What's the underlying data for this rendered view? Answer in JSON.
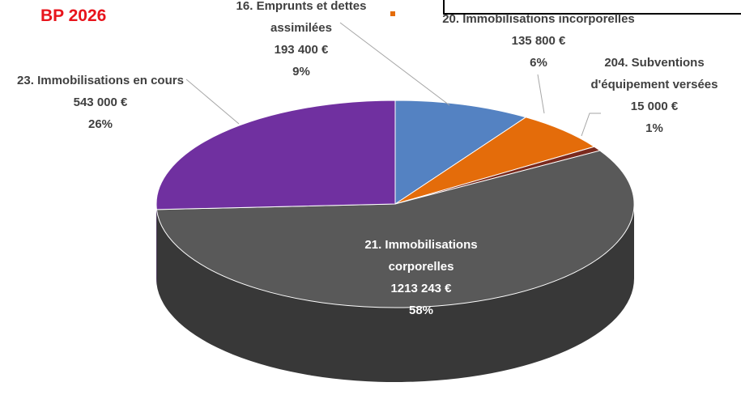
{
  "chart_data": {
    "type": "pie3d",
    "title": "BP 2026",
    "categories": [
      "16. Emprunts et dettes assimilées",
      "20. Immobilisations incorporelles",
      "204. Subventions d'équipement versées",
      "21. Immobilisations corporelles",
      "23. Immobilisations en cours"
    ],
    "values": [
      193400,
      135800,
      15000,
      1213243,
      543000
    ],
    "value_labels": [
      "193 400 €",
      "135 800 €",
      "15 000 €",
      "1213 243 €",
      "543 000 €"
    ],
    "percent_labels": [
      "9%",
      "6%",
      "1%",
      "58%",
      "26%"
    ],
    "colors": [
      "#5482c2",
      "#e46c0a",
      "#7a2a1e",
      "#595959",
      "#7030a0"
    ],
    "side_colors": [
      "#3a5f94",
      "#a84f07",
      "#3e140e",
      "#383838",
      "#45196a"
    ]
  }
}
